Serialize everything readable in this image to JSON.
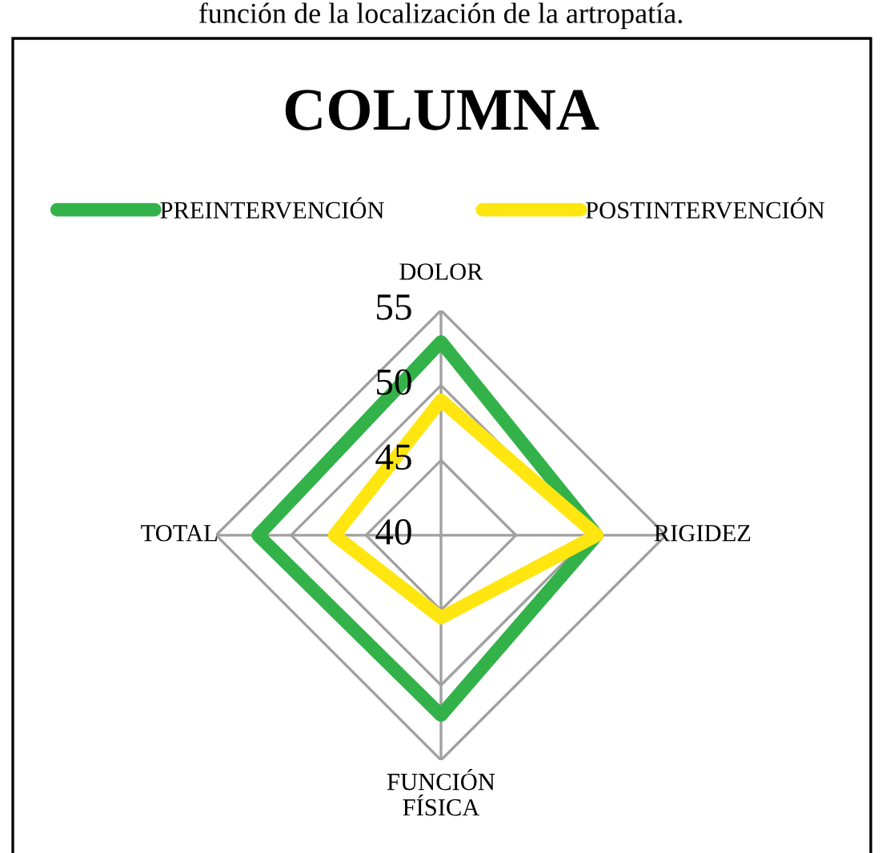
{
  "chart_data": {
    "type": "radar",
    "title": "COLUMNA",
    "annotations": [
      "función de la localización de la artropatía."
    ],
    "categories": [
      "DOLOR",
      "RIGIDEZ",
      "FUNCIÓN FÍSICA",
      "TOTAL"
    ],
    "series": [
      {
        "name": "PREINTERVENCIÓN",
        "color": "#33b24a",
        "values": [
          52.9,
          50.4,
          52.0,
          52.2
        ]
      },
      {
        "name": "POSTINTERVENCIÓN",
        "color": "#ffe610",
        "values": [
          49.0,
          50.4,
          45.5,
          47.1
        ]
      }
    ],
    "ylim": [
      40,
      55
    ],
    "yticks": [
      40,
      45,
      50,
      55
    ],
    "grid": true,
    "legend": "top"
  }
}
